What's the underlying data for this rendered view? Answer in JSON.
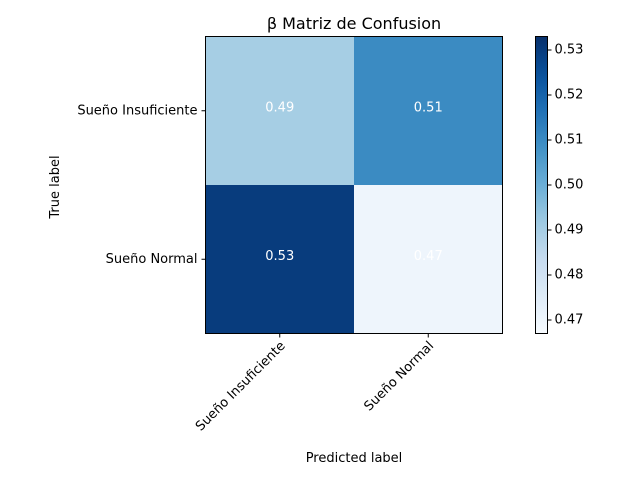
{
  "chart_data": {
    "type": "heatmap",
    "title": "β Matriz de Confusion",
    "xlabel": "Predicted label",
    "ylabel": "True label",
    "x_categories": [
      "Sueño Insuficiente",
      "Sueño Normal"
    ],
    "y_categories": [
      "Sueño Insuficiente",
      "Sueño Normal"
    ],
    "values": [
      [
        0.49,
        0.51
      ],
      [
        0.53,
        0.47
      ]
    ],
    "cell_labels": [
      [
        "0.49",
        "0.51"
      ],
      [
        "0.53",
        "0.47"
      ]
    ],
    "colormap": "Blues",
    "color_range": [
      0.467,
      0.533
    ],
    "colorbar_ticks": [
      "0.47",
      "0.48",
      "0.49",
      "0.50",
      "0.51",
      "0.52",
      "0.53"
    ],
    "text_colors": [
      "#ffffff"
    ]
  }
}
